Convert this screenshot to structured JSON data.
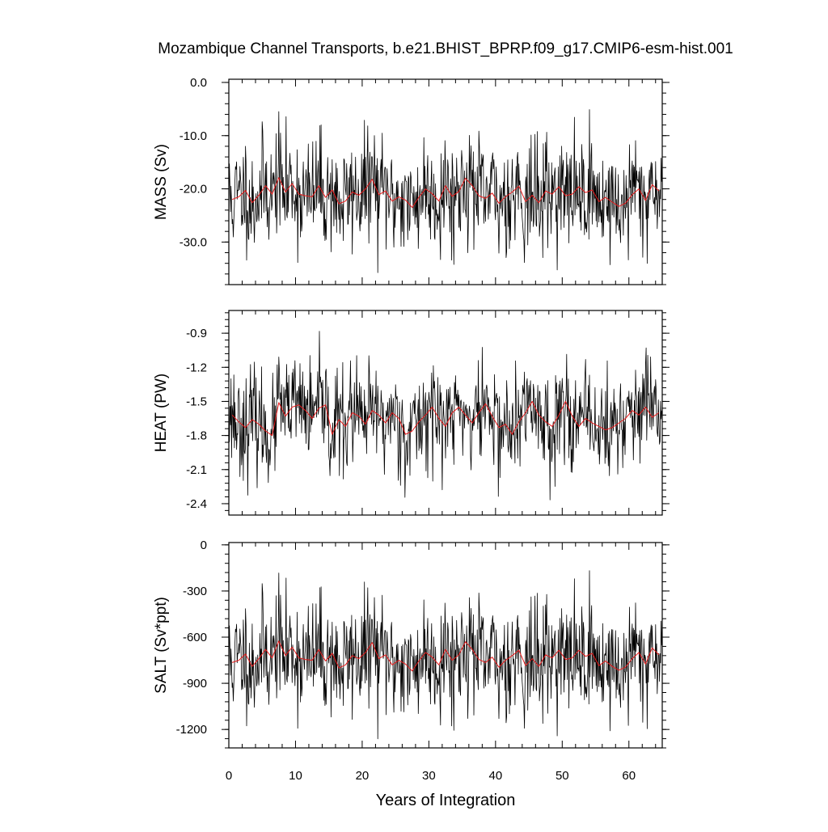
{
  "title": "Mozambique Channel Transports, b.e21.BHIST_BPRP.f09_g17.CMIP6-esm-hist.001",
  "xlabel": "Years of Integration",
  "xticks": [
    "0",
    "10",
    "20",
    "30",
    "40",
    "50",
    "60"
  ],
  "colors": {
    "monthly": "#000000",
    "annual": "#e8191a"
  },
  "chart_data": [
    {
      "type": "line",
      "ylabel": "MASS (Sv)",
      "xlim": [
        0,
        65
      ],
      "ylim": [
        -38,
        0.6
      ],
      "yticks": [
        0.0,
        -10.0,
        -20.0,
        -30.0
      ],
      "ytick_labels": [
        "0.0",
        "-10.0",
        "-20.0",
        "-30.0"
      ],
      "series": [
        {
          "resolution": "monthly",
          "mean": -21,
          "amplitude": 5.2,
          "min": -38,
          "max": 0.6,
          "count": 780,
          "seed": 11
        },
        {
          "resolution": "annual",
          "values": [
            -22.0,
            -21.5,
            -20.3,
            -22.6,
            -21.2,
            -19.4,
            -21.0,
            -17.9,
            -20.6,
            -19.0,
            -21.0,
            -21.3,
            -21.5,
            -19.4,
            -21.6,
            -20.2,
            -22.8,
            -22.3,
            -20.6,
            -21.2,
            -20.0,
            -18.2,
            -21.1,
            -20.4,
            -22.3,
            -21.5,
            -22.1,
            -23.5,
            -21.6,
            -20.0,
            -20.9,
            -22.3,
            -19.4,
            -21.4,
            -20.5,
            -18.0,
            -19.4,
            -21.3,
            -21.8,
            -20.8,
            -22.7,
            -21.5,
            -20.6,
            -19.5,
            -22.4,
            -21.2,
            -22.6,
            -20.4,
            -21.0,
            -19.6,
            -21.3,
            -21.0,
            -19.6,
            -20.7,
            -20.2,
            -22.4,
            -21.6,
            -22.5,
            -23.3,
            -22.7,
            -21.1,
            -20.0,
            -22.2,
            -19.2,
            -20.4
          ]
        }
      ]
    },
    {
      "type": "line",
      "ylabel": "HEAT (PW)",
      "xlim": [
        0,
        65
      ],
      "ylim": [
        -2.5,
        -0.7
      ],
      "yticks": [
        -0.9,
        -1.2,
        -1.5,
        -1.8,
        -2.1,
        -2.4
      ],
      "ytick_labels": [
        "-0.9",
        "-1.2",
        "-1.5",
        "-1.8",
        "-2.1",
        "-2.4"
      ],
      "series": [
        {
          "resolution": "monthly",
          "mean": -1.65,
          "amplitude": 0.22,
          "min": -2.5,
          "max": -0.7,
          "count": 780,
          "seed": 23
        },
        {
          "resolution": "annual",
          "values": [
            -1.62,
            -1.68,
            -1.73,
            -1.66,
            -1.7,
            -1.76,
            -1.8,
            -1.51,
            -1.63,
            -1.55,
            -1.53,
            -1.58,
            -1.65,
            -1.56,
            -1.53,
            -1.79,
            -1.66,
            -1.72,
            -1.6,
            -1.63,
            -1.7,
            -1.58,
            -1.62,
            -1.69,
            -1.6,
            -1.65,
            -1.79,
            -1.76,
            -1.68,
            -1.62,
            -1.55,
            -1.65,
            -1.72,
            -1.6,
            -1.55,
            -1.62,
            -1.69,
            -1.6,
            -1.52,
            -1.63,
            -1.73,
            -1.7,
            -1.79,
            -1.68,
            -1.6,
            -1.5,
            -1.62,
            -1.68,
            -1.72,
            -1.62,
            -1.5,
            -1.63,
            -1.72,
            -1.65,
            -1.69,
            -1.72,
            -1.75,
            -1.73,
            -1.69,
            -1.65,
            -1.58,
            -1.62,
            -1.55,
            -1.64,
            -1.6
          ]
        }
      ]
    },
    {
      "type": "line",
      "ylabel": "SALT (Sv*ppt)",
      "xlim": [
        0,
        65
      ],
      "ylim": [
        -1320,
        15
      ],
      "yticks": [
        0,
        -300,
        -600,
        -900,
        -1200
      ],
      "ytick_labels": [
        "0",
        "-300",
        "-600",
        "-900",
        "-1200"
      ],
      "series": [
        {
          "resolution": "monthly",
          "mean": -730,
          "amplitude": 185,
          "min": -1320,
          "max": 15,
          "count": 780,
          "seed": 11
        },
        {
          "resolution": "annual",
          "values": [
            -765,
            -750,
            -710,
            -790,
            -740,
            -680,
            -735,
            -625,
            -720,
            -665,
            -735,
            -745,
            -750,
            -680,
            -755,
            -705,
            -800,
            -780,
            -720,
            -740,
            -700,
            -635,
            -740,
            -715,
            -780,
            -750,
            -775,
            -820,
            -755,
            -700,
            -730,
            -780,
            -680,
            -750,
            -715,
            -630,
            -680,
            -745,
            -765,
            -730,
            -795,
            -750,
            -720,
            -685,
            -785,
            -740,
            -790,
            -715,
            -735,
            -685,
            -745,
            -735,
            -685,
            -725,
            -705,
            -785,
            -755,
            -790,
            -815,
            -795,
            -740,
            -700,
            -775,
            -670,
            -715
          ]
        }
      ]
    }
  ]
}
